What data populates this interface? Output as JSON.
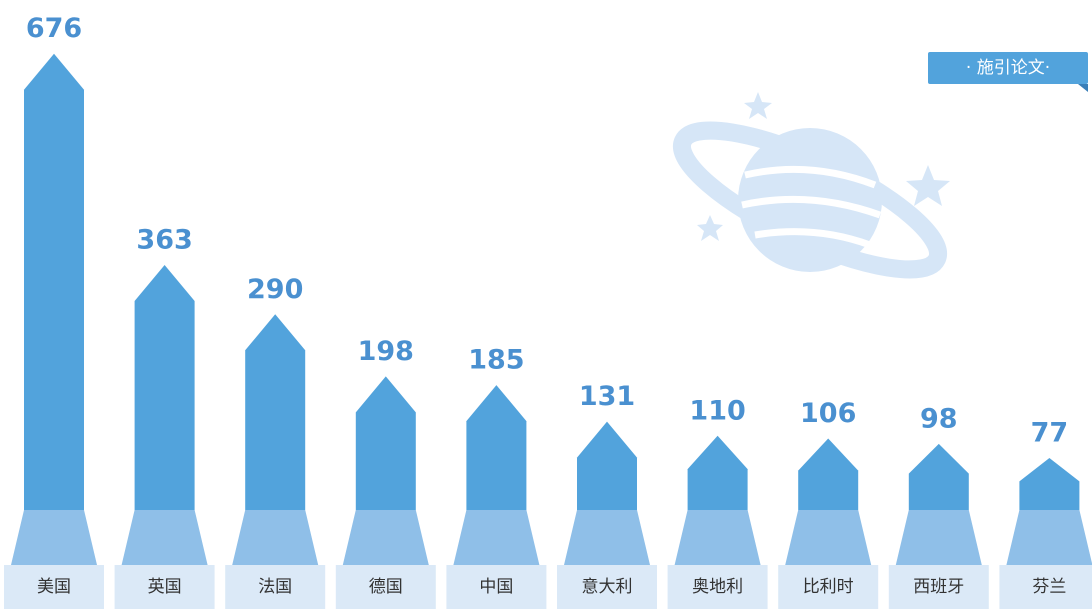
{
  "chart_data": {
    "type": "arrow-bar",
    "categories": [
      "美国",
      "英国",
      "法国",
      "德国",
      "中国",
      "意大利",
      "奥地利",
      "比利时",
      "西班牙",
      "芬兰"
    ],
    "series": [
      {
        "name": "· 施引论文·",
        "color": "#52a3dc",
        "values": [
          676,
          363,
          290,
          198,
          185,
          131,
          110,
          106,
          98,
          77
        ]
      }
    ]
  }
}
